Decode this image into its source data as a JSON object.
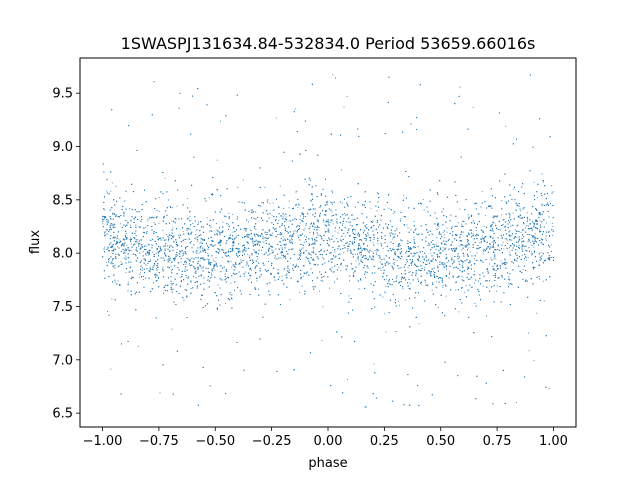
{
  "chart_data": {
    "type": "scatter",
    "title": "1SWASPJ131634.84-532834.0 Period 53659.66016s",
    "xlabel": "phase",
    "ylabel": "flux",
    "xlim": [
      -1.1,
      1.1
    ],
    "ylim": [
      6.37,
      9.83
    ],
    "x_ticks": [
      -1.0,
      -0.75,
      -0.5,
      -0.25,
      0.0,
      0.25,
      0.5,
      0.75,
      1.0
    ],
    "x_tick_labels": [
      "−1.00",
      "−0.75",
      "−0.50",
      "−0.25",
      "0.00",
      "0.25",
      "0.50",
      "0.75",
      "1.00"
    ],
    "y_ticks": [
      6.5,
      7.0,
      7.5,
      8.0,
      8.5,
      9.0,
      9.5
    ],
    "y_tick_labels": [
      "6.5",
      "7.0",
      "7.5",
      "8.0",
      "8.5",
      "9.0",
      "9.5"
    ],
    "grid": false,
    "marker_color": "#1f77b4",
    "series": [
      {
        "x_range": [
          -1.0,
          1.0
        ],
        "mean_profile": {
          "phase": [
            -1.0,
            -0.85,
            -0.7,
            -0.55,
            -0.4,
            -0.25,
            -0.1,
            0.0,
            0.1,
            0.25,
            0.4,
            0.55,
            0.7,
            0.85,
            1.0
          ],
          "flux": [
            8.15,
            8.08,
            8.0,
            7.97,
            8.02,
            8.1,
            8.15,
            8.17,
            8.12,
            8.03,
            7.97,
            7.98,
            8.05,
            8.12,
            8.15
          ]
        },
        "core_scatter_sd": 0.22,
        "flux_min": 6.52,
        "flux_max": 9.68
      }
    ]
  }
}
